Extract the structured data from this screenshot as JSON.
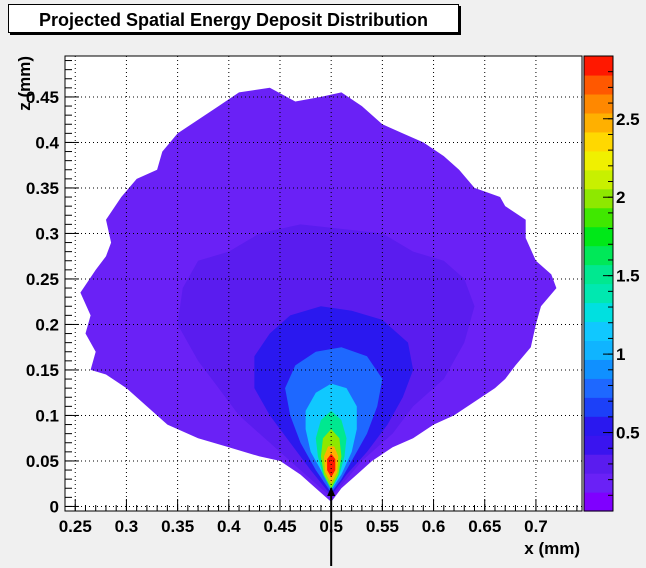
{
  "chart_data": {
    "type": "heatmap",
    "title": "Projected Spatial Energy Deposit Distribution",
    "xlabel": "x (mm)",
    "ylabel": "z (mm)",
    "xlim": [
      0.24,
      0.745
    ],
    "ylim": [
      -0.005,
      0.495
    ],
    "x_ticks": [
      "0.25",
      "0.3",
      "0.35",
      "0.4",
      "0.45",
      "0.5",
      "0.55",
      "0.6",
      "0.65",
      "0.7"
    ],
    "y_ticks": [
      "0",
      "0.05",
      "0.1",
      "0.15",
      "0.2",
      "0.25",
      "0.3",
      "0.35",
      "0.4",
      "0.45"
    ],
    "zlim": [
      0,
      2.9
    ],
    "color_ticks": [
      "0.5",
      "1",
      "1.5",
      "2",
      "2.5"
    ],
    "grid": true,
    "beam_marker_x": 0.5,
    "contours": [
      {
        "level": 0.1,
        "color": "#6a21f6",
        "points": [
          [
            0.5,
            0.005
          ],
          [
            0.485,
            0.02
          ],
          [
            0.47,
            0.035
          ],
          [
            0.45,
            0.05
          ],
          [
            0.43,
            0.055
          ],
          [
            0.4,
            0.065
          ],
          [
            0.37,
            0.075
          ],
          [
            0.34,
            0.09
          ],
          [
            0.32,
            0.11
          ],
          [
            0.3,
            0.13
          ],
          [
            0.28,
            0.145
          ],
          [
            0.265,
            0.15
          ],
          [
            0.27,
            0.17
          ],
          [
            0.26,
            0.19
          ],
          [
            0.265,
            0.21
          ],
          [
            0.255,
            0.235
          ],
          [
            0.27,
            0.26
          ],
          [
            0.28,
            0.275
          ],
          [
            0.285,
            0.29
          ],
          [
            0.28,
            0.315
          ],
          [
            0.295,
            0.34
          ],
          [
            0.31,
            0.36
          ],
          [
            0.33,
            0.37
          ],
          [
            0.335,
            0.39
          ],
          [
            0.35,
            0.41
          ],
          [
            0.37,
            0.425
          ],
          [
            0.39,
            0.44
          ],
          [
            0.41,
            0.455
          ],
          [
            0.44,
            0.46
          ],
          [
            0.465,
            0.445
          ],
          [
            0.49,
            0.45
          ],
          [
            0.51,
            0.455
          ],
          [
            0.53,
            0.44
          ],
          [
            0.55,
            0.42
          ],
          [
            0.57,
            0.41
          ],
          [
            0.59,
            0.4
          ],
          [
            0.61,
            0.385
          ],
          [
            0.625,
            0.37
          ],
          [
            0.64,
            0.35
          ],
          [
            0.665,
            0.34
          ],
          [
            0.67,
            0.33
          ],
          [
            0.69,
            0.315
          ],
          [
            0.69,
            0.295
          ],
          [
            0.7,
            0.27
          ],
          [
            0.715,
            0.255
          ],
          [
            0.72,
            0.24
          ],
          [
            0.705,
            0.22
          ],
          [
            0.7,
            0.2
          ],
          [
            0.695,
            0.175
          ],
          [
            0.68,
            0.155
          ],
          [
            0.67,
            0.14
          ],
          [
            0.66,
            0.13
          ],
          [
            0.64,
            0.115
          ],
          [
            0.62,
            0.1
          ],
          [
            0.6,
            0.09
          ],
          [
            0.58,
            0.075
          ],
          [
            0.56,
            0.065
          ],
          [
            0.54,
            0.05
          ],
          [
            0.525,
            0.035
          ],
          [
            0.51,
            0.02
          ]
        ]
      },
      {
        "level": 0.2,
        "color": "#5a1cef",
        "points": [
          [
            0.5,
            0.01
          ],
          [
            0.47,
            0.04
          ],
          [
            0.44,
            0.07
          ],
          [
            0.41,
            0.1
          ],
          [
            0.39,
            0.13
          ],
          [
            0.37,
            0.16
          ],
          [
            0.35,
            0.2
          ],
          [
            0.355,
            0.24
          ],
          [
            0.37,
            0.27
          ],
          [
            0.4,
            0.28
          ],
          [
            0.43,
            0.3
          ],
          [
            0.47,
            0.31
          ],
          [
            0.51,
            0.305
          ],
          [
            0.55,
            0.3
          ],
          [
            0.58,
            0.28
          ],
          [
            0.61,
            0.27
          ],
          [
            0.63,
            0.25
          ],
          [
            0.64,
            0.22
          ],
          [
            0.63,
            0.18
          ],
          [
            0.61,
            0.14
          ],
          [
            0.58,
            0.11
          ],
          [
            0.56,
            0.08
          ],
          [
            0.53,
            0.05
          ]
        ]
      },
      {
        "level": 0.35,
        "color": "#2a18ef",
        "points": [
          [
            0.5,
            0.012
          ],
          [
            0.48,
            0.04
          ],
          [
            0.46,
            0.07
          ],
          [
            0.44,
            0.1
          ],
          [
            0.425,
            0.13
          ],
          [
            0.425,
            0.165
          ],
          [
            0.44,
            0.19
          ],
          [
            0.46,
            0.21
          ],
          [
            0.49,
            0.22
          ],
          [
            0.52,
            0.215
          ],
          [
            0.55,
            0.205
          ],
          [
            0.575,
            0.18
          ],
          [
            0.58,
            0.15
          ],
          [
            0.57,
            0.12
          ],
          [
            0.555,
            0.09
          ],
          [
            0.535,
            0.06
          ],
          [
            0.515,
            0.035
          ]
        ]
      },
      {
        "level": 0.6,
        "color": "#1e68ff",
        "points": [
          [
            0.5,
            0.015
          ],
          [
            0.485,
            0.04
          ],
          [
            0.47,
            0.07
          ],
          [
            0.46,
            0.1
          ],
          [
            0.455,
            0.13
          ],
          [
            0.465,
            0.155
          ],
          [
            0.485,
            0.17
          ],
          [
            0.51,
            0.175
          ],
          [
            0.535,
            0.165
          ],
          [
            0.55,
            0.14
          ],
          [
            0.545,
            0.11
          ],
          [
            0.535,
            0.08
          ],
          [
            0.52,
            0.05
          ],
          [
            0.51,
            0.03
          ]
        ]
      },
      {
        "level": 0.9,
        "color": "#10c8ff",
        "points": [
          [
            0.5,
            0.018
          ],
          [
            0.49,
            0.04
          ],
          [
            0.48,
            0.06
          ],
          [
            0.475,
            0.085
          ],
          [
            0.475,
            0.105
          ],
          [
            0.485,
            0.125
          ],
          [
            0.5,
            0.135
          ],
          [
            0.515,
            0.13
          ],
          [
            0.525,
            0.11
          ],
          [
            0.525,
            0.085
          ],
          [
            0.52,
            0.06
          ],
          [
            0.51,
            0.035
          ]
        ]
      },
      {
        "level": 1.3,
        "color": "#00e890",
        "points": [
          [
            0.5,
            0.018
          ],
          [
            0.492,
            0.035
          ],
          [
            0.487,
            0.055
          ],
          [
            0.485,
            0.075
          ],
          [
            0.49,
            0.095
          ],
          [
            0.5,
            0.105
          ],
          [
            0.51,
            0.095
          ],
          [
            0.515,
            0.075
          ],
          [
            0.513,
            0.055
          ],
          [
            0.508,
            0.035
          ]
        ]
      },
      {
        "level": 1.8,
        "color": "#8ee800",
        "points": [
          [
            0.5,
            0.02
          ],
          [
            0.493,
            0.035
          ],
          [
            0.49,
            0.055
          ],
          [
            0.492,
            0.075
          ],
          [
            0.5,
            0.085
          ],
          [
            0.508,
            0.075
          ],
          [
            0.51,
            0.055
          ],
          [
            0.507,
            0.035
          ]
        ]
      },
      {
        "level": 2.2,
        "color": "#ffb000",
        "points": [
          [
            0.5,
            0.025
          ],
          [
            0.494,
            0.038
          ],
          [
            0.493,
            0.055
          ],
          [
            0.497,
            0.066
          ],
          [
            0.503,
            0.066
          ],
          [
            0.507,
            0.055
          ],
          [
            0.506,
            0.038
          ]
        ]
      },
      {
        "level": 2.6,
        "color": "#ff1800",
        "points": [
          [
            0.5,
            0.032
          ],
          [
            0.496,
            0.04
          ],
          [
            0.496,
            0.052
          ],
          [
            0.5,
            0.058
          ],
          [
            0.504,
            0.052
          ],
          [
            0.504,
            0.04
          ]
        ]
      }
    ]
  }
}
